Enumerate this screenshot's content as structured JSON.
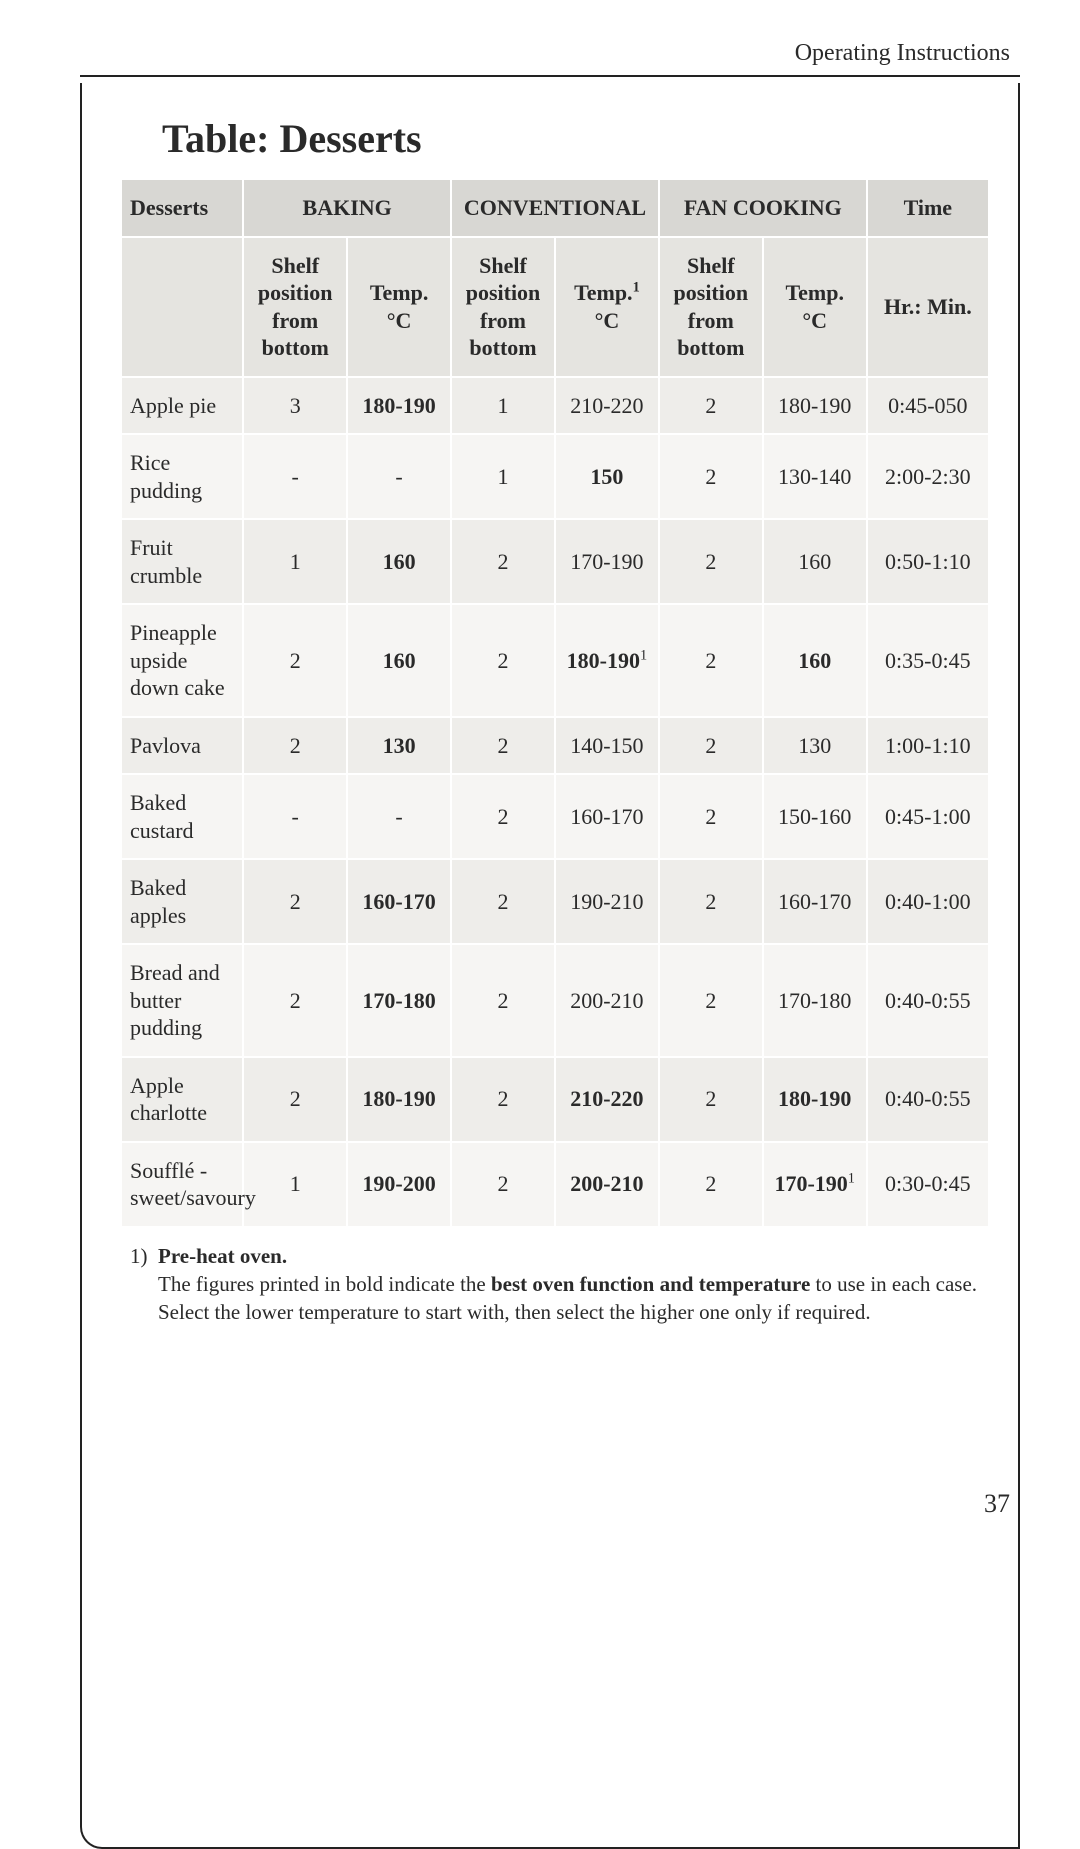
{
  "header": {
    "section": "Operating Instructions"
  },
  "title": "Table: Desserts",
  "page_number": "37",
  "colors": {
    "group_header_bg": "#d8d7d3",
    "sub_header_bg": "#e5e4e0",
    "row_odd_bg": "#eeedea",
    "row_even_bg": "#f6f5f3",
    "border": "#222222",
    "text": "#2a2a2a"
  },
  "table": {
    "group_headers": {
      "desserts": "Desserts",
      "baking": "BAKING",
      "conventional": "CONVENTIONAL",
      "fan": "FAN COOKING",
      "time": "Time"
    },
    "sub_headers": {
      "shelf": "Shelf position from bottom",
      "temp_c": "Temp. °C",
      "temp_c_sup": "Temp.",
      "temp_c_unit": "°C",
      "hrmin": "Hr.: Min."
    },
    "rows": [
      {
        "name": "Apple pie",
        "bake_shelf": "3",
        "bake_temp": "180-190",
        "bake_temp_bold": true,
        "conv_shelf": "1",
        "conv_temp": "210-220",
        "conv_temp_sup": false,
        "fan_shelf": "2",
        "fan_temp": "180-190",
        "time": "0:45-050"
      },
      {
        "name": "Rice pudding",
        "bake_shelf": "-",
        "bake_temp": "-",
        "bake_temp_bold": false,
        "conv_shelf": "1",
        "conv_temp": "150",
        "conv_temp_bold": true,
        "fan_shelf": "2",
        "fan_temp": "130-140",
        "time": "2:00-2:30"
      },
      {
        "name": "Fruit crumble",
        "bake_shelf": "1",
        "bake_temp": "160",
        "bake_temp_bold": true,
        "conv_shelf": "2",
        "conv_temp": "170-190",
        "fan_shelf": "2",
        "fan_temp": "160",
        "time": "0:50-1:10"
      },
      {
        "name": "Pineapple upside down cake",
        "bake_shelf": "2",
        "bake_temp": "160",
        "bake_temp_bold": true,
        "conv_shelf": "2",
        "conv_temp": "180-190",
        "conv_temp_sup": true,
        "conv_temp_bold": true,
        "fan_shelf": "2",
        "fan_temp": "160",
        "fan_temp_bold": true,
        "time": "0:35-0:45"
      },
      {
        "name": "Pavlova",
        "bake_shelf": "2",
        "bake_temp": "130",
        "bake_temp_bold": true,
        "conv_shelf": "2",
        "conv_temp": "140-150",
        "fan_shelf": "2",
        "fan_temp": "130",
        "time": "1:00-1:10"
      },
      {
        "name": "Baked custard",
        "bake_shelf": "-",
        "bake_temp": "-",
        "conv_shelf": "2",
        "conv_temp": "160-170",
        "fan_shelf": "2",
        "fan_temp": "150-160",
        "time": "0:45-1:00"
      },
      {
        "name": "Baked apples",
        "bake_shelf": "2",
        "bake_temp": "160-170",
        "bake_temp_bold": true,
        "conv_shelf": "2",
        "conv_temp": "190-210",
        "fan_shelf": "2",
        "fan_temp": "160-170",
        "time": "0:40-1:00"
      },
      {
        "name": "Bread and butter pudding",
        "bake_shelf": "2",
        "bake_temp": "170-180",
        "bake_temp_bold": true,
        "conv_shelf": "2",
        "conv_temp": "200-210",
        "fan_shelf": "2",
        "fan_temp": "170-180",
        "time": "0:40-0:55"
      },
      {
        "name": "Apple charlotte",
        "bake_shelf": "2",
        "bake_temp": "180-190",
        "bake_temp_bold": true,
        "conv_shelf": "2",
        "conv_temp": "210-220",
        "conv_temp_bold": true,
        "fan_shelf": "2",
        "fan_temp": "180-190",
        "fan_temp_bold": true,
        "time": "0:40-0:55"
      },
      {
        "name": "Soufflé - sweet/savoury",
        "bake_shelf": "1",
        "bake_temp": "190-200",
        "bake_temp_bold": true,
        "conv_shelf": "2",
        "conv_temp": "200-210",
        "conv_temp_bold": true,
        "fan_shelf": "2",
        "fan_temp": "170-190",
        "fan_temp_sup": true,
        "fan_temp_bold": true,
        "time": "0:30-0:45"
      }
    ]
  },
  "footnotes": {
    "num": "1)",
    "preheat": "Pre-heat oven.",
    "line2_a": "The figures printed in bold indicate the ",
    "line2_b": "best oven function and temperature",
    "line2_c": " to use in each case.",
    "line3": "Select the lower temperature to start with, then select the higher one only if required."
  }
}
